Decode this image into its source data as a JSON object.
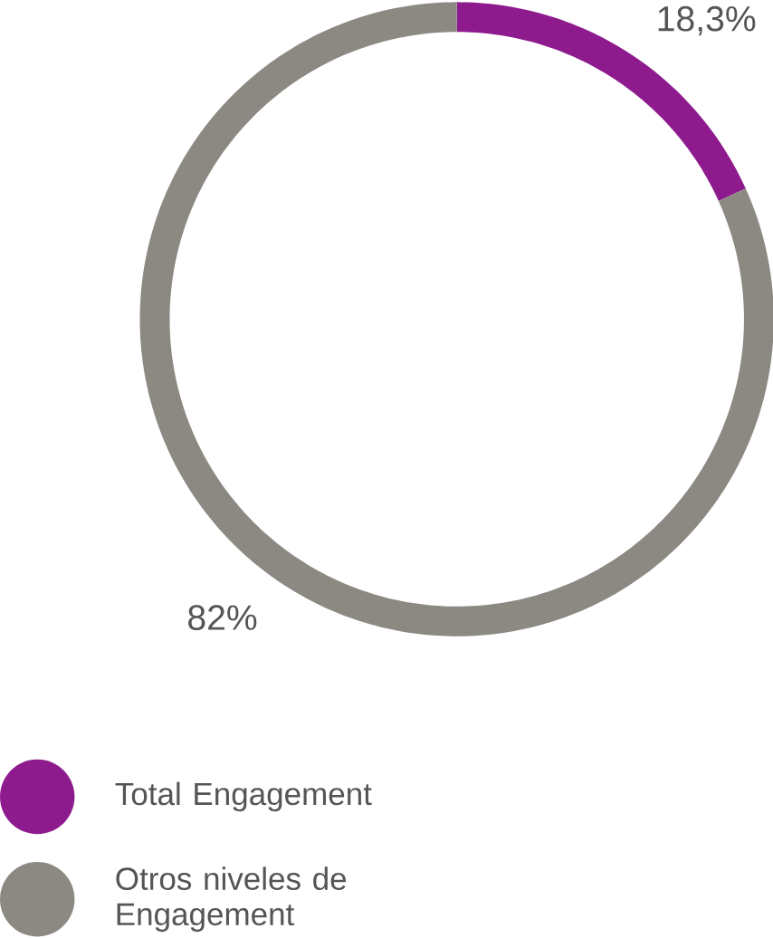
{
  "chart_data": {
    "type": "donut",
    "categories": [
      "Total Engagement",
      "Otros niveles de Engagement"
    ],
    "values": [
      18.3,
      82
    ],
    "colors": [
      "#8e1b8e",
      "#8c8882"
    ],
    "value_labels": [
      "18,3%",
      "82%"
    ],
    "legend": "bottom"
  }
}
